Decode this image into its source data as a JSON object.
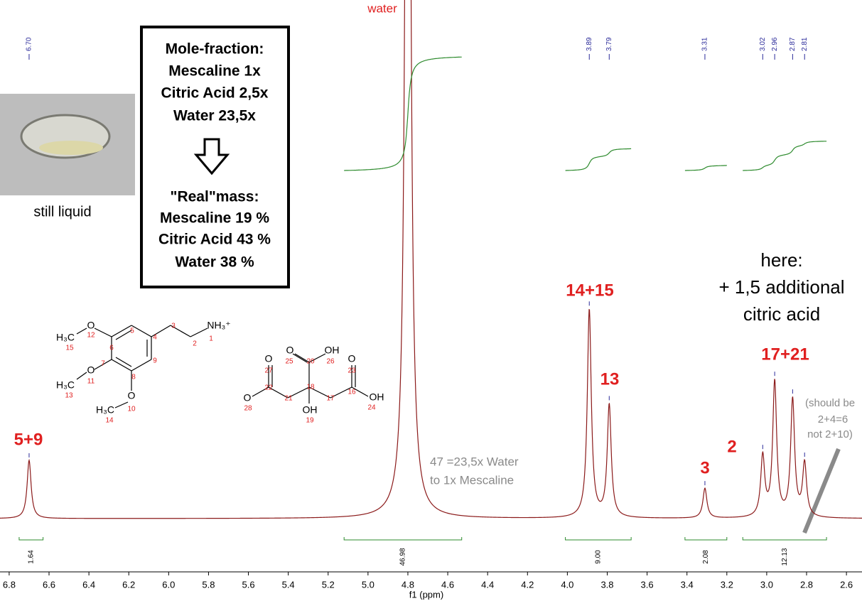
{
  "chart_data": {
    "type": "line",
    "x_label": "f1 (ppm)",
    "xlim": [
      6.846,
      2.522
    ],
    "xticks": [
      6.8,
      6.6,
      6.4,
      6.2,
      {
        "value": 6,
        "label": "6.0"
      },
      5.8,
      5.6,
      5.4,
      5.2,
      {
        "value": 5,
        "label": "5.0"
      },
      4.8,
      4.6,
      4.4,
      4.2,
      {
        "value": 4,
        "label": "4.0"
      },
      3.8,
      3.6,
      3.4,
      3.2,
      {
        "value": 3,
        "label": "3.0"
      },
      2.8,
      2.6
    ],
    "color": "#8b1a1a",
    "x": [
      6.7,
      4.8,
      3.89,
      3.79,
      3.31,
      3.02,
      2.96,
      2.87,
      2.81
    ],
    "values": [
      82,
      2080,
      293,
      158,
      42,
      85,
      190,
      165,
      75
    ],
    "peak_labels": [
      {
        "value": 6.7,
        "label": "6.70"
      },
      3.89,
      3.79,
      3.31,
      {
        "value": 3.02,
        "label": "3.02"
      },
      2.96,
      2.87,
      2.81
    ],
    "peak_label_color": "#2b2b9a",
    "integrals": {
      "color": "#2e8b2e",
      "ranges": [
        [
          6.75,
          6.63
        ],
        [
          5.12,
          4.53
        ],
        [
          4.01,
          3.68
        ],
        [
          3.41,
          3.2
        ],
        [
          3.12,
          2.7
        ]
      ],
      "values": [
        1.64,
        46.98,
        9,
        2.08,
        12.13
      ],
      "value_labels": [
        "1.64",
        "46.98",
        "9.00",
        "2.08",
        "12.13"
      ]
    }
  },
  "annotations": {
    "peak_groups": [
      "water",
      "5+9",
      "14+15",
      "13",
      "3",
      "2",
      "17+21"
    ],
    "notes": [
      "47 =23,5x Water",
      "to 1x Mescaline",
      "(should be",
      "2+4=6",
      "not 2+10)",
      "here:",
      "+ 1,5 additional",
      "citric acid"
    ],
    "photo_caption": "still liquid",
    "box": [
      "Mole-fraction:",
      "Mescaline 1x",
      "Citric Acid 2,5x",
      "Water 23,5x",
      "\"Real\"mass:",
      "Mescaline 19 %",
      "Citric Acid 43 %",
      "Water 38 %"
    ]
  },
  "structures": {
    "mescaline": {
      "atoms": [
        "O",
        "H₃C",
        "O",
        "H₃C",
        "O",
        "H₃C",
        "NH₃⁺"
      ],
      "numbers": [
        "1",
        "2",
        "3",
        "4",
        "5",
        "6",
        "7",
        "8",
        "9",
        "10",
        "11",
        "12",
        "13",
        "14",
        "15"
      ]
    },
    "citric_acid": {
      "atoms": [
        "O",
        "O",
        "O",
        "OH",
        "O",
        "OH",
        "OH"
      ],
      "numbers": [
        "16",
        "17",
        "18",
        "19",
        "20",
        "21",
        "22",
        "23",
        "24",
        "25",
        "26",
        "27",
        "28"
      ]
    }
  }
}
